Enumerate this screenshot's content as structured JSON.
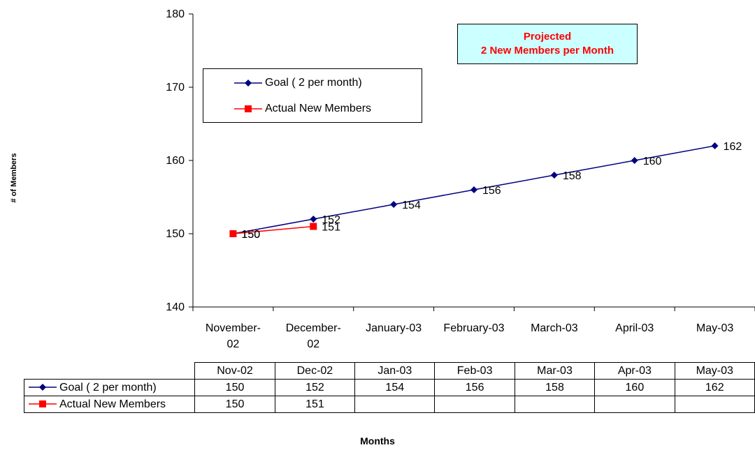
{
  "chart_data": {
    "type": "line",
    "categories": [
      "November-02",
      "December-02",
      "January-03",
      "February-03",
      "March-03",
      "April-03",
      "May-03"
    ],
    "category_labels": [
      [
        "November-",
        "02"
      ],
      [
        "December-",
        "02"
      ],
      [
        "January-03"
      ],
      [
        "February-03"
      ],
      [
        "March-03"
      ],
      [
        "April-03"
      ],
      [
        "May-03"
      ]
    ],
    "series": [
      {
        "name": "Goal ( 2 per month)",
        "values": [
          150,
          152,
          154,
          156,
          158,
          160,
          162
        ],
        "color": "#000080",
        "marker": "diamond"
      },
      {
        "name": "Actual New Members",
        "values": [
          150,
          151,
          null,
          null,
          null,
          null,
          null
        ],
        "color": "#ff0000",
        "marker": "square"
      }
    ],
    "ylim": [
      140,
      180
    ],
    "yticks": [
      140,
      150,
      160,
      170,
      180
    ],
    "ylabel": "# of Members",
    "xlabel": "Months",
    "grid": false,
    "legend": "top-left",
    "data_labels": true,
    "annotation": {
      "lines": [
        "Projected",
        "2 New Members per Month"
      ],
      "color": "#ff0000",
      "background": "#ccffff"
    },
    "data_table": {
      "columns": [
        "Nov-02",
        "Dec-02",
        "Jan-03",
        "Feb-03",
        "Mar-03",
        "Apr-03",
        "May-03"
      ],
      "rows": [
        {
          "label": "Goal ( 2 per month)",
          "values": [
            "150",
            "152",
            "154",
            "156",
            "158",
            "160",
            "162"
          ]
        },
        {
          "label": "Actual New Members",
          "values": [
            "150",
            "151",
            "",
            "",
            "",
            "",
            ""
          ]
        }
      ]
    }
  }
}
